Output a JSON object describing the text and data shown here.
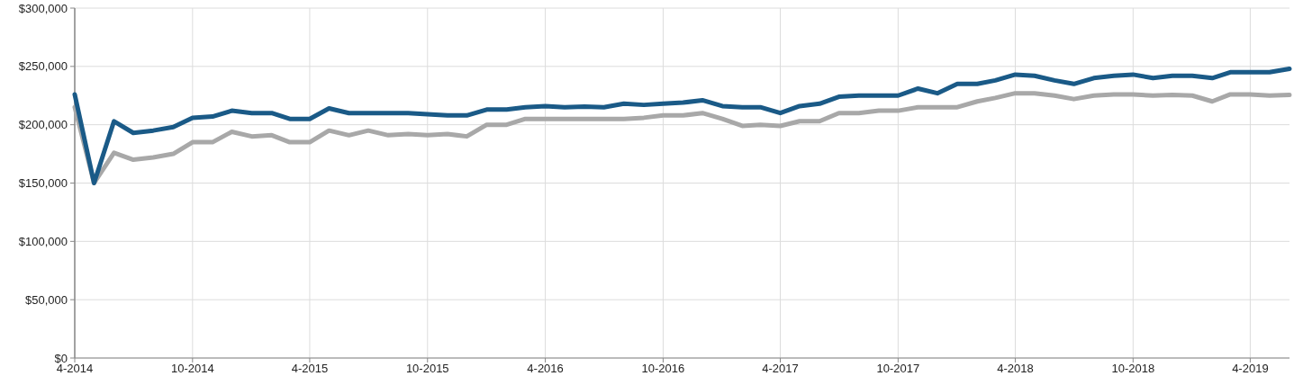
{
  "chart_data": {
    "type": "line",
    "x": [
      "2014-04",
      "2014-05",
      "2014-06",
      "2014-07",
      "2014-08",
      "2014-09",
      "2014-10",
      "2014-11",
      "2014-12",
      "2015-01",
      "2015-02",
      "2015-03",
      "2015-04",
      "2015-05",
      "2015-06",
      "2015-07",
      "2015-08",
      "2015-09",
      "2015-10",
      "2015-11",
      "2015-12",
      "2016-01",
      "2016-02",
      "2016-03",
      "2016-04",
      "2016-05",
      "2016-06",
      "2016-07",
      "2016-08",
      "2016-09",
      "2016-10",
      "2016-11",
      "2016-12",
      "2017-01",
      "2017-02",
      "2017-03",
      "2017-04",
      "2017-05",
      "2017-06",
      "2017-07",
      "2017-08",
      "2017-09",
      "2017-10",
      "2017-11",
      "2017-12",
      "2018-01",
      "2018-02",
      "2018-03",
      "2018-04",
      "2018-05",
      "2018-06",
      "2018-07",
      "2018-08",
      "2018-09",
      "2018-10",
      "2018-11",
      "2018-12",
      "2019-01",
      "2019-02",
      "2019-03",
      "2019-04",
      "2019-05",
      "2019-06"
    ],
    "series": [
      {
        "color": "#a8a8a8",
        "values": [
          215000,
          150000,
          176000,
          170000,
          172000,
          175000,
          185000,
          185000,
          194000,
          190000,
          191000,
          185000,
          185000,
          195000,
          191000,
          195000,
          191000,
          192000,
          191000,
          192000,
          190000,
          200000,
          200000,
          205000,
          205000,
          205000,
          205000,
          205000,
          205000,
          206000,
          208000,
          208000,
          210000,
          205000,
          199000,
          200000,
          199000,
          203000,
          203000,
          210000,
          210000,
          212000,
          212000,
          215000,
          215000,
          215000,
          220000,
          223000,
          227000,
          227000,
          225000,
          222000,
          225000,
          226000,
          226000,
          225000,
          225500,
          225000,
          220000,
          226000,
          226000,
          225000,
          225500
        ]
      },
      {
        "color": "#1a5a87",
        "values": [
          226000,
          150000,
          203000,
          193000,
          195000,
          198000,
          206000,
          207000,
          212000,
          210000,
          210000,
          205000,
          205000,
          214000,
          210000,
          210000,
          210000,
          210000,
          209000,
          208000,
          208000,
          213000,
          213000,
          215000,
          216000,
          215000,
          215500,
          215000,
          218000,
          217000,
          218000,
          219000,
          221000,
          216000,
          215000,
          215000,
          210000,
          216000,
          218000,
          224000,
          225000,
          225000,
          225000,
          231000,
          227000,
          235000,
          235000,
          238000,
          243000,
          242000,
          238000,
          235000,
          240000,
          242000,
          243000,
          240000,
          242000,
          242000,
          240000,
          245000,
          245000,
          245000,
          248000
        ]
      }
    ],
    "xlim": [
      "2014-04",
      "2019-06"
    ],
    "xticks": [
      {
        "value": "2014-04",
        "label": "4-2014"
      },
      {
        "value": "2014-10",
        "label": "10-2014"
      },
      {
        "value": "2015-04",
        "label": "4-2015"
      },
      {
        "value": "2015-10",
        "label": "10-2015"
      },
      {
        "value": "2016-04",
        "label": "4-2016"
      },
      {
        "value": "2016-10",
        "label": "10-2016"
      },
      {
        "value": "2017-04",
        "label": "4-2017"
      },
      {
        "value": "2017-10",
        "label": "10-2017"
      },
      {
        "value": "2018-04",
        "label": "4-2018"
      },
      {
        "value": "2018-10",
        "label": "10-2018"
      },
      {
        "value": "2019-04",
        "label": "4-2019"
      }
    ],
    "ylim": [
      0,
      300000
    ],
    "yticks": [
      {
        "value": 0,
        "label": "$0"
      },
      {
        "value": 50000,
        "label": "$50,000"
      },
      {
        "value": 100000,
        "label": "$100,000"
      },
      {
        "value": 150000,
        "label": "$150,000"
      },
      {
        "value": 200000,
        "label": "$200,000"
      },
      {
        "value": 250000,
        "label": "$250,000"
      },
      {
        "value": 300000,
        "label": "$300,000"
      }
    ],
    "grid": true,
    "marker": "none",
    "line_style": "solid"
  }
}
